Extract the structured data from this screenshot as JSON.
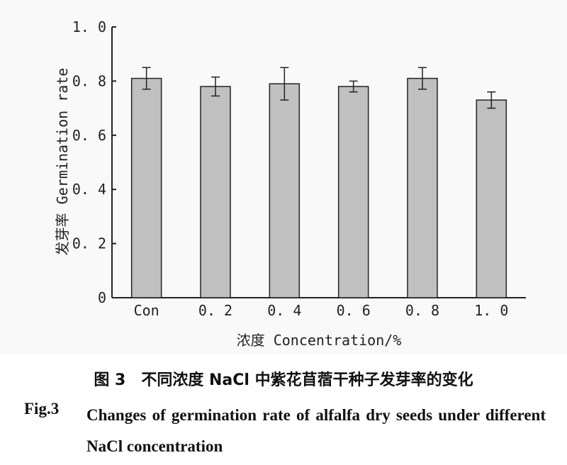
{
  "chart_data": {
    "type": "bar",
    "categories": [
      "Con",
      "0. 2",
      "0. 4",
      "0. 6",
      "0. 8",
      "1. 0"
    ],
    "values": [
      0.81,
      0.78,
      0.79,
      0.78,
      0.81,
      0.73
    ],
    "errors": [
      0.04,
      0.035,
      0.06,
      0.02,
      0.04,
      0.03
    ],
    "ylim": [
      0,
      1.0
    ],
    "yticks": [
      0,
      0.2,
      0.4,
      0.6,
      0.8,
      1.0
    ],
    "ytick_labels": [
      "0",
      "0. 2",
      "0. 4",
      "0. 6",
      "0. 8",
      "1. 0"
    ],
    "ylabel": "发芽率 Germination rate",
    "xlabel": "浓度 Concentration/%",
    "bar_color": "#c0c0c0",
    "grid": false
  },
  "caption": {
    "cn_figure": "图 3",
    "cn_text": "不同浓度 NaCl 中紫花苜蓿干种子发芽率的变化",
    "en_figure": "Fig.3",
    "en_text": "Changes of germination rate of alfalfa dry seeds under different NaCl concentration"
  }
}
